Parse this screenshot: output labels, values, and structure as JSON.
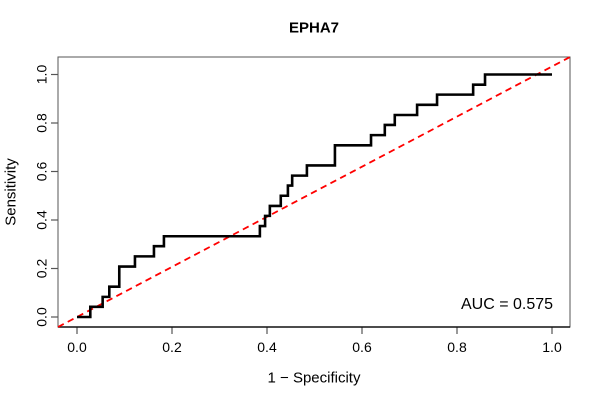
{
  "chart": {
    "title": "EPHA7",
    "x_axis_label": "1 − Specificity",
    "y_axis_label": "Sensitivity",
    "auc_annotation": "AUC = 0.575"
  },
  "colors": {
    "roc_curve": "#000000",
    "diagonal": "#ff0000",
    "box_and_ticks": "#555555",
    "bottom_axis": "#111111",
    "tick_text": "#000000",
    "background": "#ffffff"
  },
  "chart_data": {
    "type": "line",
    "subtype": "roc-step-curve",
    "title": "EPHA7",
    "xlabel": "1 − Specificity",
    "ylabel": "Sensitivity",
    "xlim": [
      0.0,
      1.0
    ],
    "ylim": [
      0.0,
      1.0
    ],
    "x_ticks": [
      0.0,
      0.2,
      0.4,
      0.6,
      0.8,
      1.0
    ],
    "y_ticks": [
      0.0,
      0.2,
      0.4,
      0.6,
      0.8,
      1.0
    ],
    "grid": false,
    "legend": "none",
    "auc": 0.575,
    "series": [
      {
        "name": "ROC curve",
        "style": "step",
        "color": "#000000",
        "points": [
          [
            0.0,
            0.0
          ],
          [
            0.028,
            0.042
          ],
          [
            0.054,
            0.083
          ],
          [
            0.068,
            0.125
          ],
          [
            0.089,
            0.208
          ],
          [
            0.122,
            0.25
          ],
          [
            0.162,
            0.292
          ],
          [
            0.183,
            0.333
          ],
          [
            0.385,
            0.375
          ],
          [
            0.396,
            0.417
          ],
          [
            0.406,
            0.458
          ],
          [
            0.429,
            0.5
          ],
          [
            0.444,
            0.542
          ],
          [
            0.453,
            0.583
          ],
          [
            0.484,
            0.625
          ],
          [
            0.543,
            0.708
          ],
          [
            0.619,
            0.75
          ],
          [
            0.648,
            0.792
          ],
          [
            0.669,
            0.833
          ],
          [
            0.716,
            0.875
          ],
          [
            0.758,
            0.917
          ],
          [
            0.834,
            0.958
          ],
          [
            0.859,
            1.0
          ],
          [
            1.0,
            1.0
          ]
        ]
      },
      {
        "name": "chance diagonal",
        "style": "dashed",
        "color": "#ff0000",
        "points": [
          [
            0.0,
            0.0
          ],
          [
            1.0,
            1.0
          ]
        ]
      }
    ]
  }
}
